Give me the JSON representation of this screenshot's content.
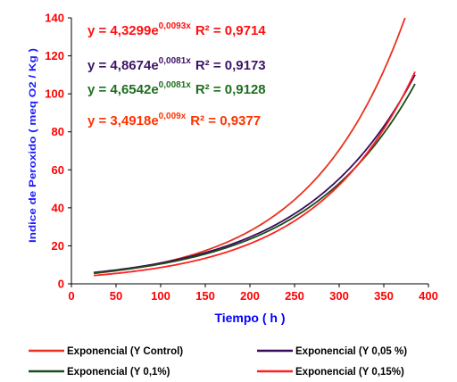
{
  "chart_data": {
    "type": "line",
    "xlabel": "Tiempo ( h )",
    "ylabel": "Indice de Peroxido ( meq O2 / Kg )",
    "xlim": [
      0,
      400
    ],
    "ylim": [
      0,
      140
    ],
    "x_ticks": [
      "0",
      "50",
      "100",
      "150",
      "200",
      "250",
      "300",
      "350",
      "400"
    ],
    "y_ticks": [
      "0",
      "20",
      "40",
      "60",
      "80",
      "100",
      "120",
      "140"
    ],
    "x_range_data": [
      25,
      385
    ],
    "grid": false,
    "legend_position": "bottom",
    "series": [
      {
        "name": "Exponencial (Y Control)",
        "color": "#e8331f",
        "model": "exponential",
        "a": 4.3299,
        "b": 0.0093,
        "r2": 0.9714,
        "eq_base": "y = 4,3299e",
        "eq_exp": "0,0093x",
        "eq_r2": "R² = 0,9714",
        "eq_color": "#ff1010"
      },
      {
        "name": "Exponencial (Y 0,05 %)",
        "color": "#3a0a5a",
        "model": "exponential",
        "a": 4.8674,
        "b": 0.0081,
        "r2": 0.9173,
        "eq_base": "y = 4,8674e",
        "eq_exp": "0,0081x",
        "eq_r2": "R² = 0,9173",
        "eq_color": "#3d1466"
      },
      {
        "name": "Exponencial (Y 0,1%)",
        "color": "#1a4d1a",
        "model": "exponential",
        "a": 4.6542,
        "b": 0.0081,
        "r2": 0.9128,
        "eq_base": "y = 4,6542e",
        "eq_exp": "0,0081x",
        "eq_r2": "R² = 0,9128",
        "eq_color": "#1e6e1e"
      },
      {
        "name": "Exponencial (Y 0,15%)",
        "color": "#ff2020",
        "model": "exponential",
        "a": 3.4918,
        "b": 0.009,
        "r2": 0.9377,
        "eq_base": "y = 3,4918e",
        "eq_exp": "0,009x",
        "eq_r2": "R² = 0,9377",
        "eq_color": "#ff3300"
      }
    ],
    "colors": {
      "axis": "#000000",
      "tick_label": "#ff0000",
      "x_title": "#0000ff",
      "y_title": "#1a1aff"
    }
  }
}
